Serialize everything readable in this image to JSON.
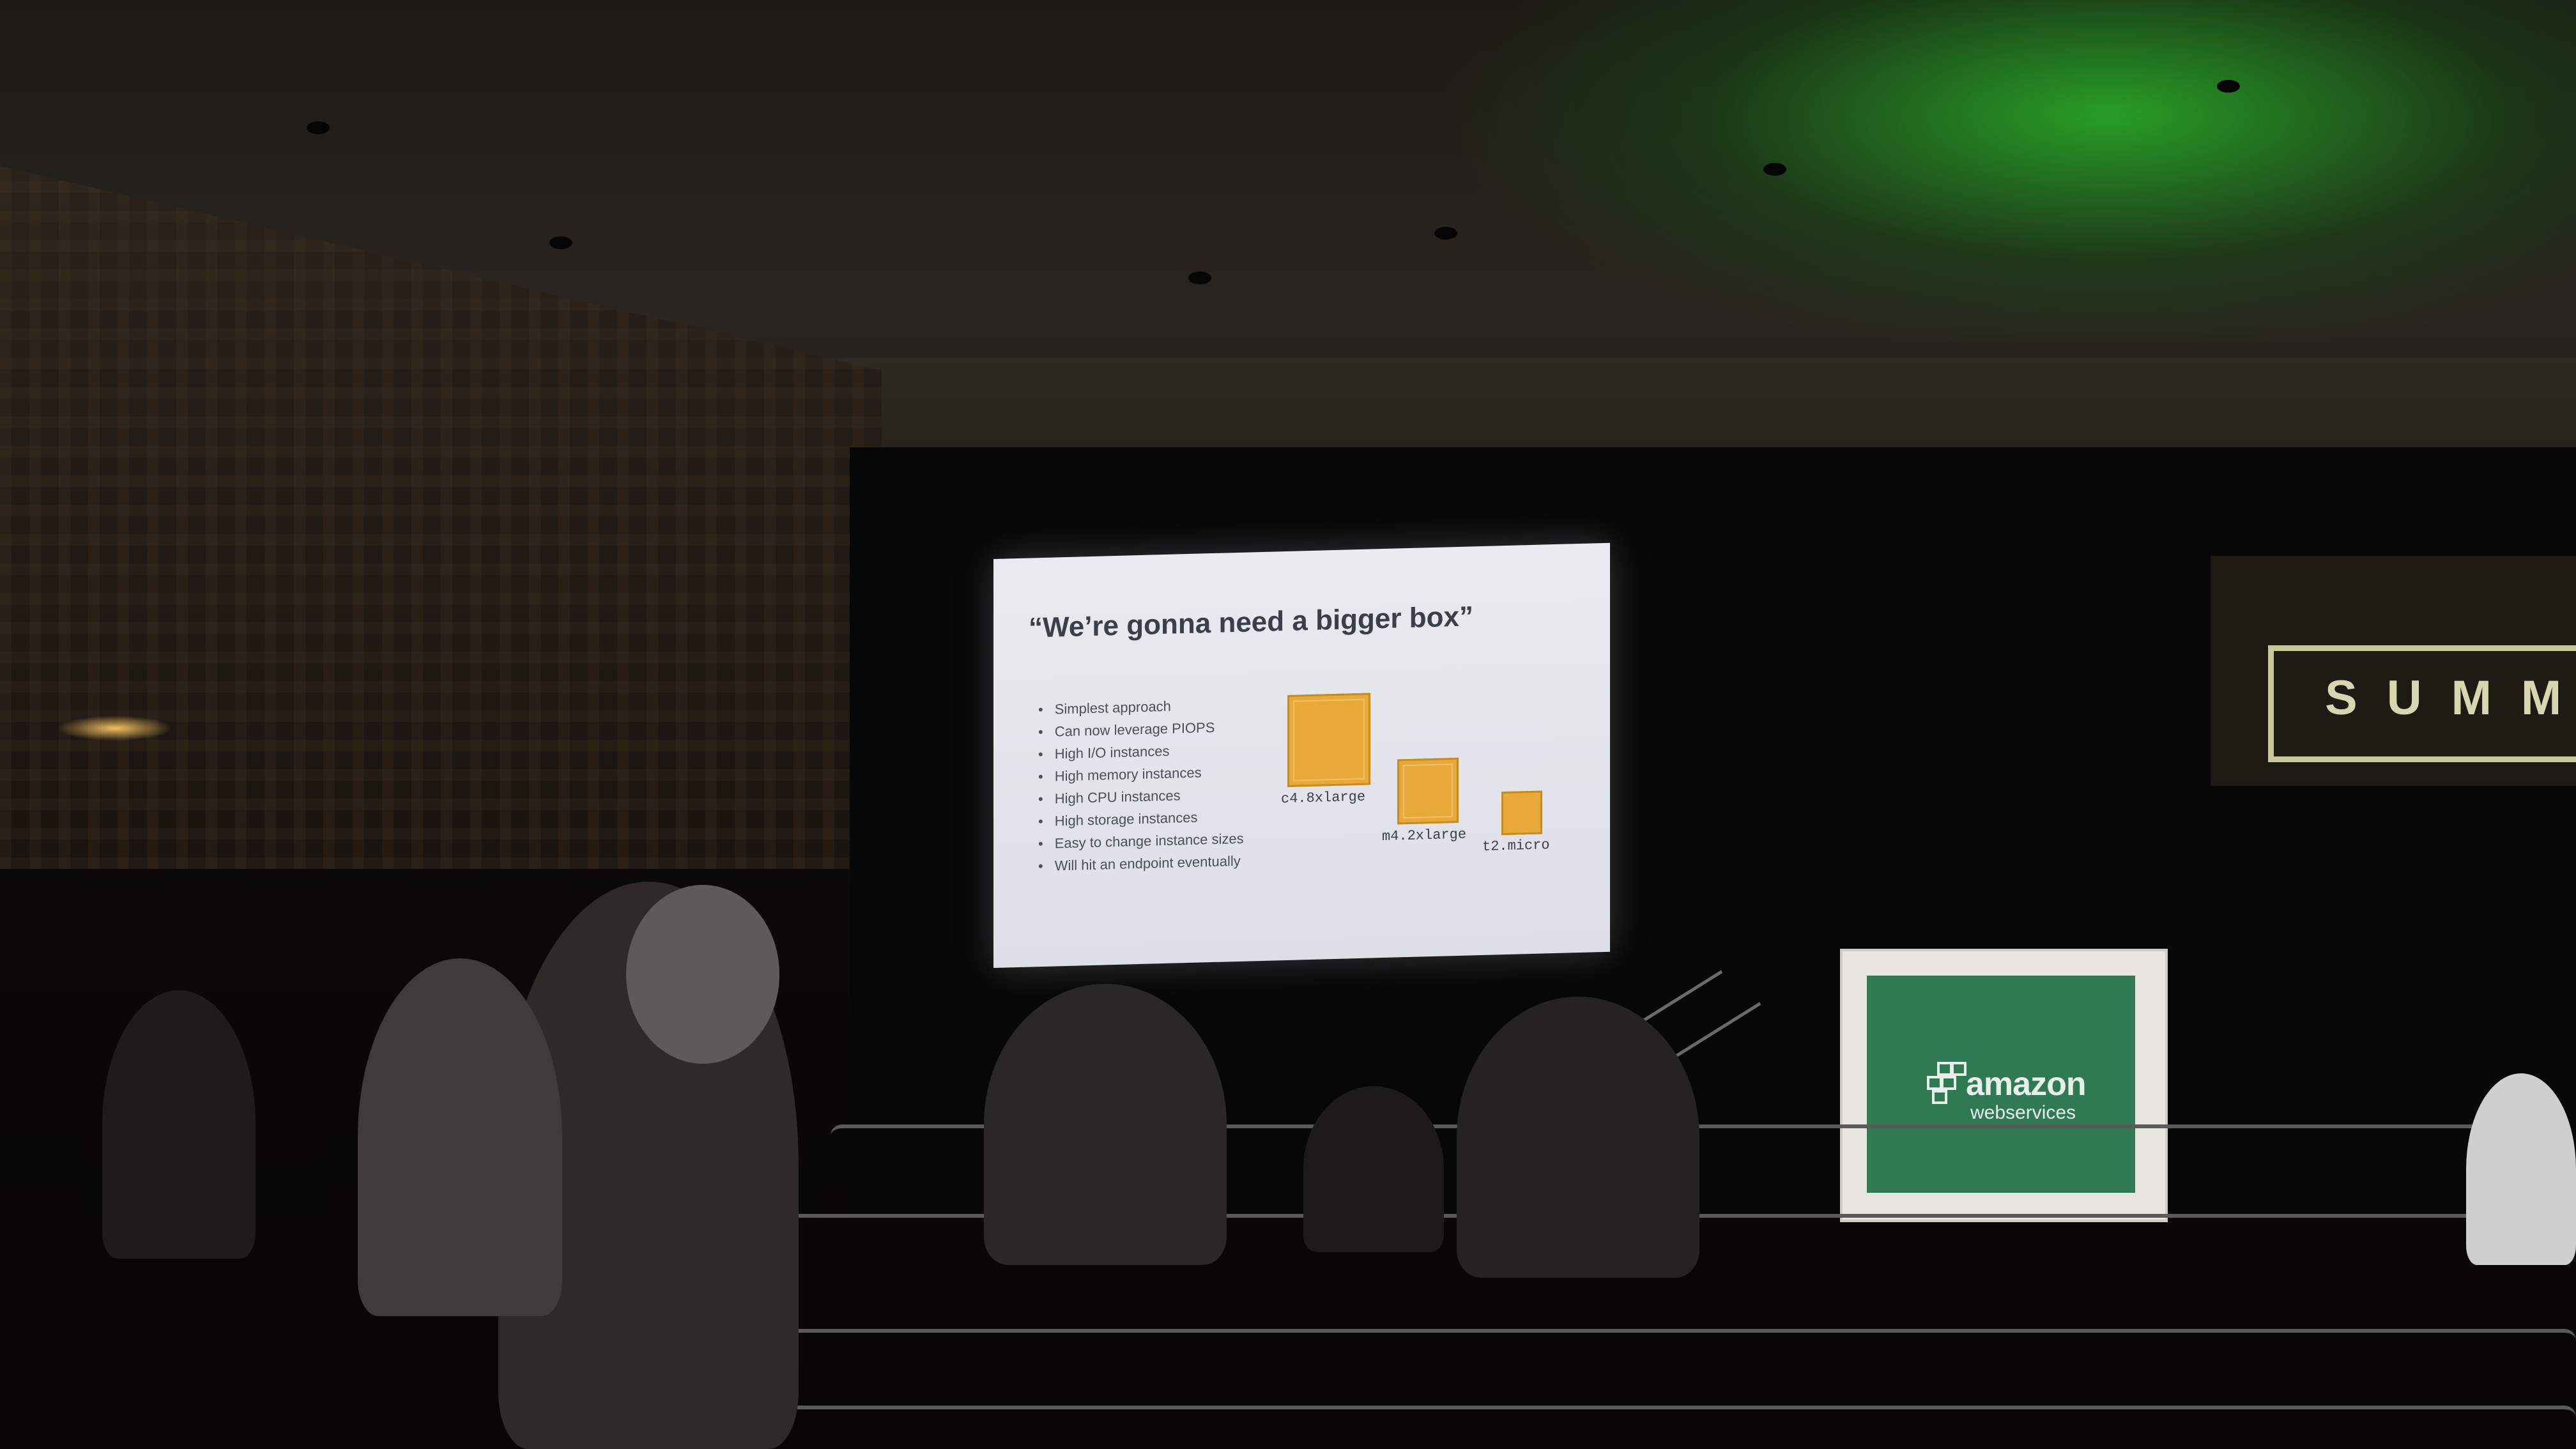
{
  "slide": {
    "title": "“We’re gonna need a bigger box”",
    "bullets": [
      "Simplest approach",
      "Can now leverage PIOPS",
      "High I/O instances",
      "High memory instances",
      "High CPU instances",
      "High storage instances",
      "Easy to change instance sizes",
      "Will hit an endpoint eventually"
    ],
    "boxes": [
      {
        "label": "c4.8xlarge"
      },
      {
        "label": "m4.2xlarge"
      },
      {
        "label": "t2.micro"
      }
    ]
  },
  "banner": {
    "text": "SUMM"
  },
  "podium": {
    "logo_line1": "amazon",
    "logo_line2": "webservices",
    "logo_icon": "aws-cubes-logo"
  },
  "colors": {
    "box_fill": "#e7a93a",
    "podium_green": "#2f7a52",
    "ceiling_green": "#28b428",
    "screen": "#e9ebf0"
  }
}
